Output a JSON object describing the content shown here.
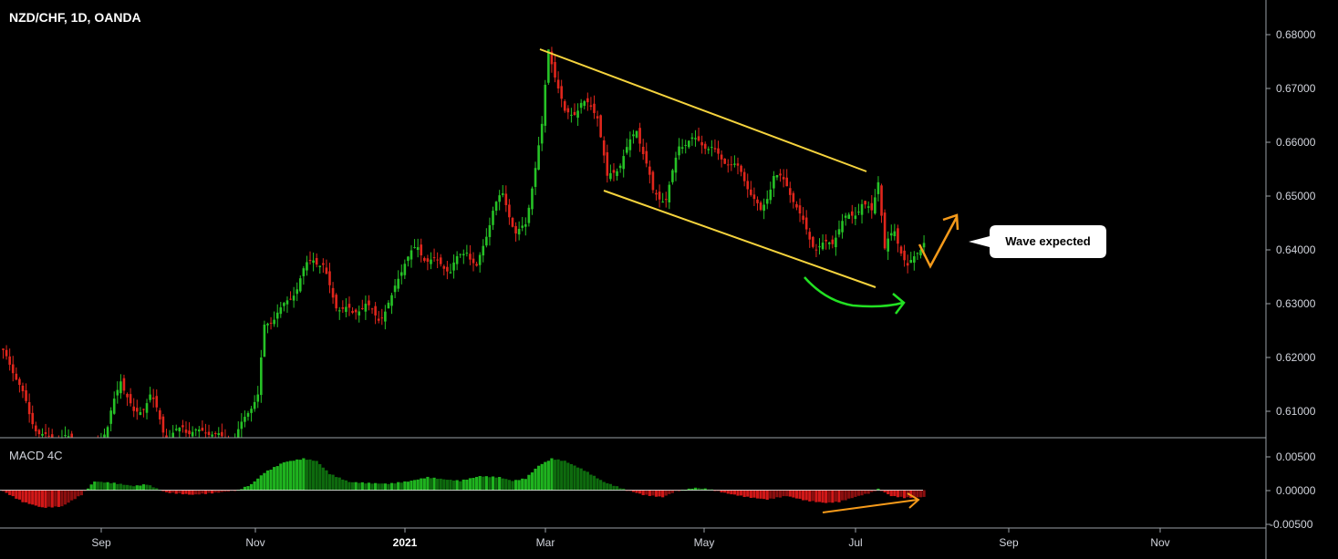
{
  "header": {
    "symbol_line": "NZD/CHF, 1D, OANDA"
  },
  "indicator": {
    "title": "MACD 4C"
  },
  "annotation": {
    "callout": "Wave expected"
  },
  "colors": {
    "up": "#26c226",
    "down": "#e0261c",
    "channel": "#f5d33d",
    "arrow_green": "#22e022",
    "arrow_orange": "#f59a1a",
    "callout_bg": "#ffffff"
  },
  "chart_data": {
    "type": "candlestick",
    "price_axis": {
      "ticks": [
        "0.68000",
        "0.67000",
        "0.66000",
        "0.65000",
        "0.64000",
        "0.63000",
        "0.62000",
        "0.61000"
      ],
      "range": [
        0.6045,
        0.6855
      ]
    },
    "macd_axis": {
      "ticks": [
        "0.00500",
        "0.00000",
        "-0.00500"
      ],
      "range": [
        -0.0065,
        0.009
      ]
    },
    "time_axis": {
      "labels": [
        {
          "text": "Sep",
          "bold": false
        },
        {
          "text": "Nov",
          "bold": false
        },
        {
          "text": "2021",
          "bold": true
        },
        {
          "text": "Mar",
          "bold": false
        },
        {
          "text": "May",
          "bold": false
        },
        {
          "text": "Jul",
          "bold": false
        },
        {
          "text": "Sep",
          "bold": false
        },
        {
          "text": "Nov",
          "bold": false
        }
      ]
    },
    "close_keypoints": [
      [
        0,
        0.62
      ],
      [
        8,
        0.609
      ],
      [
        15,
        0.604
      ],
      [
        20,
        0.603
      ],
      [
        26,
        0.603
      ],
      [
        32,
        0.605
      ],
      [
        36,
        0.615
      ],
      [
        40,
        0.61
      ],
      [
        45,
        0.612
      ],
      [
        50,
        0.603
      ],
      [
        55,
        0.608
      ],
      [
        60,
        0.605
      ],
      [
        65,
        0.604
      ],
      [
        70,
        0.605
      ],
      [
        75,
        0.609
      ],
      [
        78,
        0.611
      ],
      [
        80,
        0.624
      ],
      [
        84,
        0.629
      ],
      [
        90,
        0.632
      ],
      [
        95,
        0.637
      ],
      [
        98,
        0.637
      ],
      [
        102,
        0.63
      ],
      [
        107,
        0.626
      ],
      [
        111,
        0.629
      ],
      [
        115,
        0.628
      ],
      [
        119,
        0.63
      ],
      [
        123,
        0.636
      ],
      [
        127,
        0.64
      ],
      [
        132,
        0.638
      ],
      [
        137,
        0.634
      ],
      [
        142,
        0.64
      ],
      [
        145,
        0.637
      ],
      [
        150,
        0.646
      ],
      [
        153,
        0.648
      ],
      [
        157,
        0.643
      ],
      [
        160,
        0.645
      ],
      [
        162,
        0.652
      ],
      [
        165,
        0.661
      ],
      [
        167,
        0.675
      ],
      [
        172,
        0.665
      ],
      [
        177,
        0.667
      ],
      [
        182,
        0.663
      ],
      [
        185,
        0.652
      ],
      [
        190,
        0.658
      ],
      [
        194,
        0.661
      ],
      [
        199,
        0.649
      ],
      [
        203,
        0.65
      ],
      [
        207,
        0.659
      ],
      [
        212,
        0.658
      ],
      [
        217,
        0.659
      ],
      [
        222,
        0.656
      ],
      [
        227,
        0.651
      ],
      [
        232,
        0.647
      ],
      [
        236,
        0.654
      ],
      [
        240,
        0.65
      ],
      [
        244,
        0.645
      ],
      [
        249,
        0.641
      ],
      [
        254,
        0.64
      ],
      [
        259,
        0.645
      ],
      [
        263,
        0.649
      ],
      [
        266,
        0.647
      ],
      [
        268,
        0.652
      ],
      [
        270,
        0.638
      ],
      [
        273,
        0.642
      ],
      [
        277,
        0.637
      ],
      [
        280,
        0.64
      ],
      [
        282,
        0.641
      ]
    ],
    "macd_keypoints": [
      [
        0,
        -0.0002
      ],
      [
        6,
        -0.002
      ],
      [
        12,
        -0.003
      ],
      [
        18,
        -0.0028
      ],
      [
        24,
        -0.0008
      ],
      [
        28,
        0.0015
      ],
      [
        34,
        0.0012
      ],
      [
        40,
        0.0007
      ],
      [
        44,
        0.001
      ],
      [
        50,
        -0.0004
      ],
      [
        58,
        -0.0008
      ],
      [
        66,
        -0.0004
      ],
      [
        72,
        0.0
      ],
      [
        76,
        0.001
      ],
      [
        80,
        0.003
      ],
      [
        86,
        0.0048
      ],
      [
        92,
        0.0054
      ],
      [
        96,
        0.005
      ],
      [
        100,
        0.0028
      ],
      [
        106,
        0.0014
      ],
      [
        112,
        0.0012
      ],
      [
        118,
        0.0011
      ],
      [
        124,
        0.0015
      ],
      [
        130,
        0.0022
      ],
      [
        136,
        0.0018
      ],
      [
        140,
        0.0016
      ],
      [
        146,
        0.0024
      ],
      [
        152,
        0.0022
      ],
      [
        156,
        0.0016
      ],
      [
        160,
        0.002
      ],
      [
        164,
        0.0042
      ],
      [
        168,
        0.0054
      ],
      [
        172,
        0.005
      ],
      [
        178,
        0.0034
      ],
      [
        184,
        0.0014
      ],
      [
        190,
        0.0002
      ],
      [
        196,
        -0.0008
      ],
      [
        202,
        -0.0012
      ],
      [
        206,
        -0.0002
      ],
      [
        212,
        0.0004
      ],
      [
        216,
        0.0002
      ],
      [
        222,
        -0.0006
      ],
      [
        228,
        -0.0012
      ],
      [
        234,
        -0.0016
      ],
      [
        240,
        -0.001
      ],
      [
        246,
        -0.0018
      ],
      [
        252,
        -0.0022
      ],
      [
        256,
        -0.002
      ],
      [
        262,
        -0.001
      ],
      [
        266,
        -0.0004
      ],
      [
        268,
        0.0002
      ],
      [
        272,
        -0.001
      ],
      [
        276,
        -0.0013
      ],
      [
        282,
        -0.0012
      ]
    ]
  }
}
